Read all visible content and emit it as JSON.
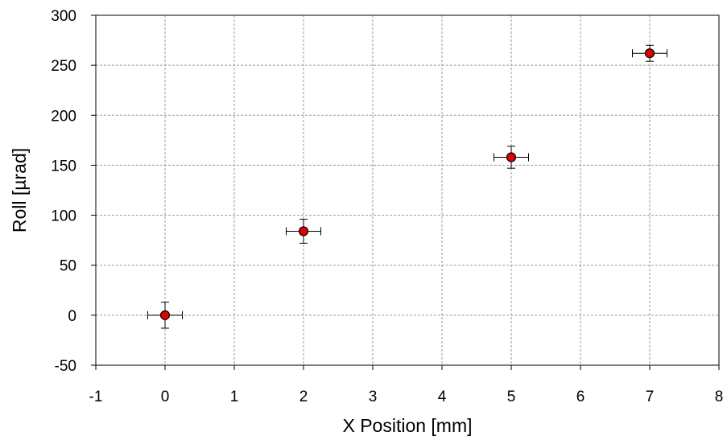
{
  "chart_data": {
    "type": "scatter",
    "title": "",
    "xlabel": "X Position [mm]",
    "ylabel": "Roll [µrad]",
    "xlim": [
      -1,
      8
    ],
    "ylim": [
      -50,
      300
    ],
    "xticks": [
      -1,
      0,
      1,
      2,
      3,
      4,
      5,
      6,
      7,
      8
    ],
    "yticks": [
      -50,
      0,
      50,
      100,
      150,
      200,
      250,
      300
    ],
    "grid": true,
    "legend": "none",
    "points": [
      {
        "x": 0,
        "y": 0,
        "xerr": 0.25,
        "yerr": 13
      },
      {
        "x": 2,
        "y": 84,
        "xerr": 0.25,
        "yerr": 12
      },
      {
        "x": 5,
        "y": 158,
        "xerr": 0.25,
        "yerr": 11
      },
      {
        "x": 7,
        "y": 262,
        "xerr": 0.25,
        "yerr": 8
      }
    ],
    "marker_color": "#e00000",
    "marker_edge_color": "#000000",
    "grid_color": "#9a9a9a"
  }
}
